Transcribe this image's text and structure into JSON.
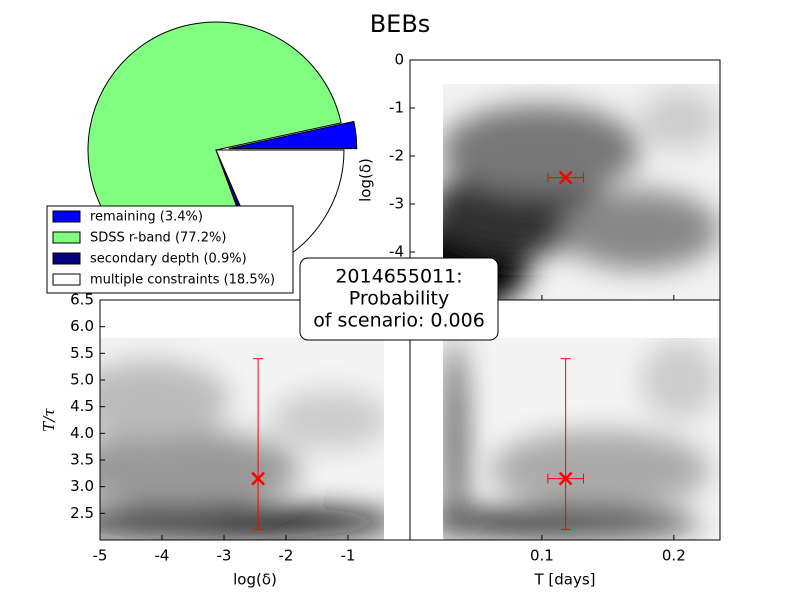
{
  "title": "BEBs",
  "annotation": [
    "2014655011:",
    "Probability",
    "of scenario: 0.006"
  ],
  "chart_data": [
    {
      "type": "pie",
      "start_angle": 0,
      "counterclock": true,
      "labels": [
        "remaining (3.4%)",
        "SDSS r-band (77.2%)",
        "secondary depth (0.9%)",
        "multiple constraints (18.5%)"
      ],
      "values": [
        3.4,
        77.2,
        0.9,
        18.5
      ],
      "colors": [
        "#0000ff",
        "#80ff80",
        "#000080",
        "#ffffff"
      ],
      "explode": [
        0.1,
        0,
        0,
        0
      ],
      "legend": "lower left"
    },
    {
      "type": "scatter",
      "ylabel": "log(δ)",
      "xlim": [
        0,
        0.235
      ],
      "ylim": [
        -5,
        0
      ],
      "yticks": [
        -4,
        -3,
        -2,
        -1,
        0
      ],
      "x": [
        0.118
      ],
      "y": [
        -2.45
      ],
      "xerr": [
        0.0135
      ],
      "color": "#ff0000"
    },
    {
      "type": "scatter",
      "xlabel": "log(δ)",
      "ylabel": "T/τ",
      "xlim": [
        -5,
        0
      ],
      "ylim": [
        2.0,
        6.5
      ],
      "xticks": [
        -5,
        -4,
        -3,
        -2,
        -1
      ],
      "yticks": [
        2.5,
        {
          "value": 3,
          "label": "3.0"
        },
        3.5,
        {
          "value": 4,
          "label": "4.0"
        },
        4.5,
        {
          "value": 5,
          "label": "5.0"
        },
        5.5,
        {
          "value": 6,
          "label": "6.0"
        },
        6.5
      ],
      "x": [
        -2.45
      ],
      "y": [
        3.15
      ],
      "yerr_minus": [
        0.95
      ],
      "yerr_plus": [
        2.25
      ],
      "color": "#ff0000"
    },
    {
      "type": "scatter",
      "xlabel": "T [days]",
      "xlim": [
        0,
        0.235
      ],
      "ylim": [
        2.0,
        6.5
      ],
      "xticks": [
        0.1,
        0.2
      ],
      "x": [
        0.118
      ],
      "y": [
        3.15
      ],
      "xerr": [
        0.0135
      ],
      "yerr_minus": [
        0.95
      ],
      "yerr_plus": [
        2.25
      ],
      "color": "#ff0000"
    }
  ]
}
